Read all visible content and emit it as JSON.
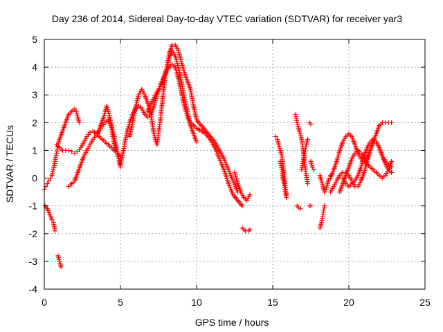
{
  "chart_data": {
    "type": "scatter",
    "title": "Day 236 of 2014, Sidereal Day-to-day VTEC variation (SDTVAR) for receiver yar3",
    "xlabel": "GPS time / hours",
    "ylabel": "SDTVAR / TECUs",
    "xlim": [
      0,
      25
    ],
    "ylim": [
      -4,
      5
    ],
    "xticks": [
      0,
      5,
      10,
      15,
      20,
      25
    ],
    "yticks": [
      -4,
      -3,
      -2,
      -1,
      0,
      1,
      2,
      3,
      4,
      5
    ],
    "xtick_labels": [
      "0",
      "5",
      "10",
      "15",
      "20",
      "25"
    ],
    "ytick_labels": [
      "-4",
      "-3",
      "-2",
      "-1",
      "0",
      "1",
      "2",
      "3",
      "4",
      "5"
    ],
    "grid": true,
    "marker": "plus",
    "color": "#ff0000",
    "series": [
      {
        "name": "s1",
        "x": [
          0.0,
          0.1,
          0.2,
          0.3,
          0.4,
          0.5,
          0.6,
          0.7,
          0.8,
          0.9,
          1.0,
          1.2,
          1.4,
          1.6,
          1.8,
          2.0,
          2.1,
          2.2,
          2.3
        ],
        "y": [
          -0.4,
          -0.3,
          -0.2,
          -0.1,
          0.0,
          0.1,
          0.3,
          0.6,
          0.9,
          1.2,
          1.4,
          1.7,
          2.0,
          2.3,
          2.4,
          2.5,
          2.4,
          2.2,
          2.0
        ]
      },
      {
        "name": "s2",
        "x": [
          0.8,
          1.0,
          1.2,
          1.4,
          1.6,
          1.8,
          2.0,
          2.2,
          2.4,
          2.6,
          2.8,
          3.0,
          3.2,
          3.4,
          3.6,
          3.8,
          4.0,
          4.2,
          4.4,
          4.6,
          4.8,
          5.0
        ],
        "y": [
          1.2,
          1.1,
          1.0,
          1.0,
          1.0,
          0.95,
          0.9,
          0.95,
          1.1,
          1.3,
          1.5,
          1.65,
          1.7,
          1.6,
          1.5,
          1.4,
          1.3,
          1.2,
          1.1,
          1.0,
          0.9,
          0.8
        ]
      },
      {
        "name": "s3",
        "x": [
          1.6,
          1.8,
          2.0,
          2.2,
          2.4,
          2.6,
          2.8,
          3.0,
          3.2,
          3.4,
          3.6,
          3.8,
          4.0,
          4.2,
          4.4,
          4.6,
          4.8,
          5.0
        ],
        "y": [
          -0.3,
          -0.2,
          -0.1,
          0.2,
          0.5,
          0.8,
          1.0,
          1.2,
          1.4,
          1.55,
          1.7,
          1.85,
          2.0,
          2.1,
          1.9,
          1.5,
          0.9,
          0.4
        ]
      },
      {
        "name": "s4",
        "x": [
          3.5,
          3.7,
          3.9,
          4.1,
          4.3,
          4.5,
          4.7
        ],
        "y": [
          1.6,
          1.9,
          2.2,
          2.6,
          2.2,
          1.5,
          1.0
        ]
      },
      {
        "name": "s5",
        "x": [
          0.05,
          0.2,
          0.35,
          0.5,
          0.6,
          0.7
        ],
        "y": [
          -1.0,
          -1.1,
          -1.3,
          -1.5,
          -1.6,
          -1.9
        ]
      },
      {
        "name": "s6",
        "x": [
          0.9,
          1.0,
          1.1
        ],
        "y": [
          -2.8,
          -3.0,
          -3.2
        ]
      },
      {
        "name": "s7",
        "x": [
          5.0,
          5.2,
          5.4,
          5.6,
          5.8,
          6.0,
          6.2,
          6.4,
          6.6,
          6.8,
          7.0,
          7.2,
          7.4,
          7.6,
          7.8,
          8.0,
          8.2,
          8.4,
          8.6,
          8.8,
          9.0,
          9.2,
          9.4,
          9.6,
          9.8,
          10.0,
          10.3,
          10.6,
          10.9,
          11.2,
          11.5,
          11.8,
          12.1,
          12.4,
          12.7,
          13.0
        ],
        "y": [
          0.5,
          1.0,
          1.6,
          2.0,
          2.3,
          2.5,
          2.6,
          2.5,
          2.3,
          2.2,
          2.3,
          2.6,
          3.0,
          3.3,
          3.6,
          3.8,
          4.0,
          4.1,
          4.0,
          3.6,
          3.1,
          2.6,
          2.2,
          2.0,
          1.9,
          1.8,
          1.7,
          1.6,
          1.4,
          1.1,
          0.7,
          0.3,
          -0.2,
          -0.6,
          -0.8,
          -1.0
        ]
      },
      {
        "name": "s8",
        "x": [
          5.6,
          5.8,
          6.0,
          6.2,
          6.4,
          6.6,
          6.8,
          7.0,
          7.2,
          7.4,
          7.6,
          7.8,
          8.0,
          8.2,
          8.4,
          8.6,
          8.8,
          9.0,
          9.2,
          9.4,
          9.6,
          9.8,
          10.0,
          10.3,
          10.6,
          10.9,
          11.2,
          11.5,
          11.8,
          12.1,
          12.4,
          12.7
        ],
        "y": [
          1.5,
          2.0,
          2.6,
          3.0,
          3.2,
          3.0,
          2.7,
          2.3,
          1.6,
          1.2,
          2.0,
          3.0,
          3.9,
          4.5,
          4.8,
          4.8,
          4.6,
          4.2,
          3.8,
          3.5,
          3.2,
          2.6,
          2.1,
          1.9,
          1.7,
          1.5,
          1.3,
          1.0,
          0.7,
          0.3,
          -0.1,
          -0.5
        ]
      },
      {
        "name": "s9",
        "x": [
          6.8,
          7.0,
          7.2,
          7.4,
          7.6,
          7.8,
          8.0,
          8.2,
          8.4,
          8.6,
          8.8,
          9.0,
          9.2,
          9.4,
          9.6,
          9.8,
          10.0
        ],
        "y": [
          2.4,
          2.7,
          2.9,
          3.1,
          3.3,
          3.5,
          3.9,
          4.3,
          4.6,
          4.4,
          4.0,
          3.5,
          2.9,
          2.4,
          1.9,
          1.6,
          1.3
        ]
      },
      {
        "name": "s10",
        "x": [
          12.5,
          12.7,
          12.9,
          13.1,
          13.3,
          13.5
        ],
        "y": [
          0.2,
          -0.2,
          -0.5,
          -0.7,
          -0.8,
          -0.6
        ]
      },
      {
        "name": "s11",
        "x": [
          13.0,
          13.2,
          13.4,
          13.5
        ],
        "y": [
          -1.8,
          -1.9,
          -1.9,
          -1.85
        ]
      },
      {
        "name": "s12",
        "x": [
          15.2,
          15.3,
          15.4,
          15.5,
          15.6,
          15.7,
          15.8,
          15.9
        ],
        "y": [
          1.5,
          1.4,
          1.2,
          1.0,
          0.8,
          0.4,
          -0.2,
          -0.6
        ]
      },
      {
        "name": "s13",
        "x": [
          15.5,
          15.6,
          15.7,
          15.8,
          15.9
        ],
        "y": [
          0.6,
          0.3,
          -0.1,
          -0.4,
          -0.7
        ]
      },
      {
        "name": "s14",
        "x": [
          16.5,
          16.6,
          16.7,
          16.8,
          16.9,
          17.0,
          17.1,
          17.2,
          17.3
        ],
        "y": [
          2.3,
          2.0,
          1.8,
          1.6,
          1.4,
          1.0,
          0.5,
          0.1,
          -0.2
        ]
      },
      {
        "name": "s15",
        "x": [
          16.6,
          16.7,
          16.8
        ],
        "y": [
          -1.0,
          -1.05,
          -1.1
        ]
      },
      {
        "name": "s16",
        "x": [
          16.9,
          17.0,
          17.1,
          17.2,
          17.3
        ],
        "y": [
          0.3,
          0.6,
          0.9,
          1.2,
          1.4
        ]
      },
      {
        "name": "s17",
        "x": [
          17.4,
          17.5
        ],
        "y": [
          2.0,
          1.95
        ]
      },
      {
        "name": "s18",
        "x": [
          17.5,
          17.6,
          17.7
        ],
        "y": [
          0.6,
          0.4,
          0.3
        ]
      },
      {
        "name": "s19",
        "x": [
          17.4,
          17.5
        ],
        "y": [
          -1.0,
          -1.0
        ]
      },
      {
        "name": "s20",
        "x": [
          18.1,
          18.2,
          18.3,
          18.4,
          18.5,
          18.6,
          18.7,
          18.8
        ],
        "y": [
          0.1,
          -0.1,
          -0.3,
          -0.5,
          -0.4,
          -0.2,
          0.0,
          0.1
        ]
      },
      {
        "name": "s21",
        "x": [
          18.1,
          18.2,
          18.3,
          18.4
        ],
        "y": [
          -1.8,
          -1.6,
          -1.3,
          -1.0
        ]
      },
      {
        "name": "s22",
        "x": [
          18.8,
          19.0,
          19.2,
          19.4,
          19.6,
          19.8,
          20.0,
          20.2,
          20.4,
          20.6,
          20.8,
          21.0,
          21.2,
          21.4,
          21.6,
          21.8,
          22.0,
          22.2,
          22.4,
          22.6,
          22.8
        ],
        "y": [
          0.0,
          0.3,
          0.6,
          1.0,
          1.3,
          1.5,
          1.6,
          1.5,
          1.2,
          0.9,
          0.7,
          0.6,
          0.7,
          1.0,
          1.3,
          1.6,
          1.9,
          2.0,
          2.0,
          2.0,
          2.0
        ]
      },
      {
        "name": "s23",
        "x": [
          18.8,
          19.0,
          19.2,
          19.4,
          19.6,
          19.8,
          20.0,
          20.2,
          20.4,
          20.6,
          20.8,
          21.0,
          21.2,
          21.4,
          21.6,
          21.8,
          22.0,
          22.2,
          22.4,
          22.6,
          22.8
        ],
        "y": [
          -0.5,
          -0.3,
          -0.1,
          0.1,
          0.2,
          0.2,
          0.1,
          -0.1,
          -0.3,
          -0.3,
          -0.1,
          0.2,
          0.6,
          1.0,
          1.3,
          1.3,
          1.1,
          0.8,
          0.6,
          0.5,
          0.4
        ]
      },
      {
        "name": "s24",
        "x": [
          19.4,
          19.6,
          19.8,
          20.0,
          20.2,
          20.4,
          20.6,
          20.8,
          21.0,
          21.2,
          21.4,
          21.6,
          21.8,
          22.0,
          22.2,
          22.4,
          22.6,
          22.8
        ],
        "y": [
          -0.5,
          -0.2,
          0.1,
          0.4,
          0.7,
          0.9,
          1.0,
          0.9,
          0.7,
          0.5,
          0.4,
          0.3,
          0.2,
          0.1,
          0.0,
          0.1,
          0.3,
          0.6
        ]
      },
      {
        "name": "s25",
        "x": [
          19.6,
          19.8,
          20.0,
          20.2,
          20.4,
          20.6,
          20.8,
          21.0,
          21.2,
          21.4,
          21.6,
          21.8,
          22.0,
          22.2,
          22.4,
          22.6,
          22.8
        ],
        "y": [
          0.0,
          -0.2,
          -0.3,
          -0.2,
          -0.1,
          0.1,
          0.4,
          0.8,
          1.1,
          1.3,
          1.4,
          1.3,
          1.1,
          0.8,
          0.5,
          0.3,
          0.2
        ]
      }
    ]
  }
}
